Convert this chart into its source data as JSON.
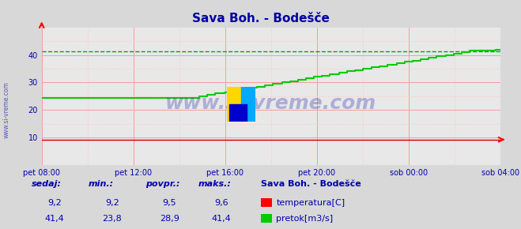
{
  "title": "Sava Boh. - Bodešče",
  "bg_color": "#d8d8d8",
  "plot_bg_color": "#e8e8e8",
  "grid_color_major": "#ff9999",
  "grid_color_minor": "#ffcccc",
  "title_color": "#0000aa",
  "axis_label_color": "#0000aa",
  "watermark_text": "www.si-vreme.com",
  "watermark_color": "#0000aa",
  "watermark_alpha": 0.25,
  "ylim": [
    0,
    50
  ],
  "yticks": [
    10,
    20,
    30,
    40
  ],
  "xlabel_ticks": [
    "pet 08:00",
    "pet 12:00",
    "pet 16:00",
    "pet 20:00",
    "sob 00:00",
    "sob 04:00"
  ],
  "temp_color": "#cc0000",
  "flow_color": "#00cc00",
  "max_line_color": "#00aa00",
  "temp_value": 9.2,
  "temp_min": 9.2,
  "temp_avg": 9.5,
  "temp_max": 9.6,
  "flow_value": 41.4,
  "flow_min": 23.8,
  "flow_avg": 28.9,
  "flow_max": 41.4,
  "station_name": "Sava Boh. - Bodešče",
  "legend_temp": "temperatura[C]",
  "legend_flow": "pretok[m3/s]",
  "label_sedaj": "sedaj:",
  "label_min": "min.:",
  "label_povpr": "povpr.:",
  "label_maks": "maks.:",
  "bottom_text_color": "#0000aa"
}
